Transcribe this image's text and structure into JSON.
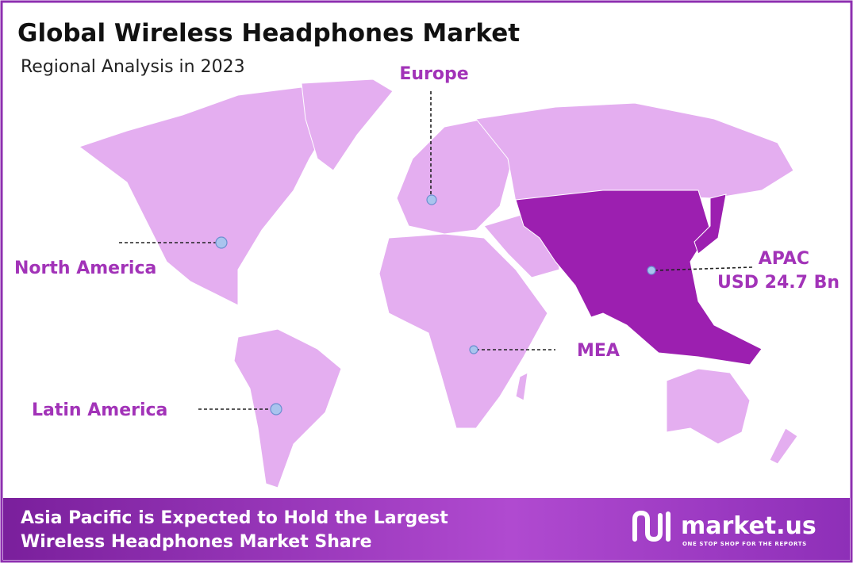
{
  "header": {
    "title": "Global Wireless Headphones Market",
    "subtitle": "Regional Analysis in 2023"
  },
  "regions": [
    {
      "label": "Europe"
    },
    {
      "label": "North America"
    },
    {
      "label": "Latin America"
    },
    {
      "label": "MEA"
    },
    {
      "label": "APAC",
      "value_label": "USD 24.7 Bn"
    }
  ],
  "footer": {
    "lines": [
      "Asia Pacific is Expected to Hold the Largest",
      "Wireless Headphones Market Share"
    ]
  },
  "logo": {
    "name": "market.us",
    "tagline": "ONE STOP SHOP FOR THE REPORTS"
  }
}
